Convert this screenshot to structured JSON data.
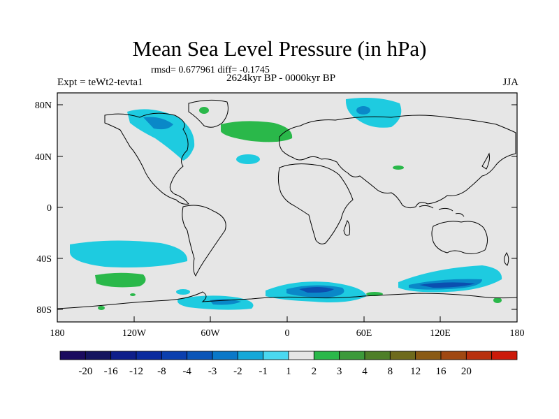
{
  "title": "Mean Sea Level Pressure (in hPa)",
  "stats_line": "rmsd= 0.677961 diff= -0.1745",
  "left_label": "Expt = teWt2-tevta1",
  "center_label": "2624kyr BP - 0000kyr BP",
  "right_label": "JJA",
  "lat_ticks": [
    "80N",
    "40N",
    "0",
    "40S",
    "80S"
  ],
  "lon_ticks": [
    "180",
    "120W",
    "60W",
    "0",
    "60E",
    "120E",
    "180"
  ],
  "colorbar": {
    "labels": [
      "-20",
      "-16",
      "-12",
      "-8",
      "-4",
      "-3",
      "-2",
      "-1",
      "1",
      "2",
      "3",
      "4",
      "8",
      "12",
      "16",
      "20"
    ],
    "colors": [
      "#1a0a5e",
      "#14145f",
      "#0e1e8a",
      "#0a2a9e",
      "#0b3fae",
      "#0a55b8",
      "#0a78c8",
      "#14a8d8",
      "#4ad8f0",
      "#e6e6e6",
      "#2ab84a",
      "#3c9a3a",
      "#4e7f28",
      "#6e6a1c",
      "#8a5a14",
      "#a04812",
      "#b8300e",
      "#cc1a0a"
    ]
  },
  "colors": {
    "background": "#e6e6e6",
    "cyan": "#1ecbe0",
    "mid_blue": "#0a88c8",
    "dark_blue": "#0b4fb0",
    "green": "#2ab84a",
    "coast": "#000000"
  }
}
